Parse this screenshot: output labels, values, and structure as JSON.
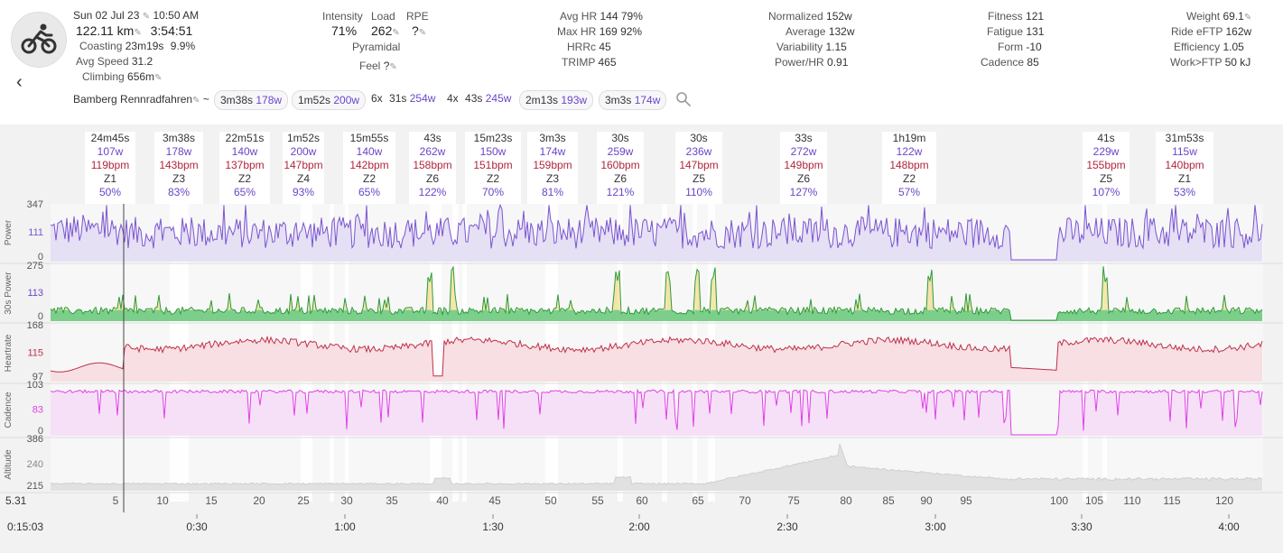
{
  "header": {
    "date": "Sun 02 Jul 23",
    "time": "10:50 AM",
    "distance": "122.11 km",
    "duration": "3:54:51",
    "coasting_label": "Coasting",
    "coasting_value": "23m19s",
    "coasting_pct": "9.9%",
    "avg_speed_label": "Avg Speed",
    "avg_speed_value": "31.2",
    "climbing_label": "Climbing",
    "climbing_value": "656m",
    "intensity_label": "Intensity",
    "intensity_value": "71%",
    "load_label": "Load",
    "load_value": "262",
    "rpe_label": "RPE",
    "rpe_value": "?",
    "pyramidal": "Pyramidal",
    "feel_label": "Feel",
    "feel_value": "?",
    "avg_hr_label": "Avg HR",
    "avg_hr_value": "144",
    "avg_hr_pct": "79%",
    "max_hr_label": "Max HR",
    "max_hr_value": "169",
    "max_hr_pct": "92%",
    "hrrc_label": "HRRc",
    "hrrc_value": "45",
    "trimp_label": "TRIMP",
    "trimp_value": "465",
    "normalized_label": "Normalized",
    "normalized_value": "152w",
    "average_label": "Average",
    "average_value": "132w",
    "variability_label": "Variability",
    "variability_value": "1.15",
    "powerhr_label": "Power/HR",
    "powerhr_value": "0.91",
    "fitness_label": "Fitness",
    "fitness_value": "121",
    "fatigue_label": "Fatigue",
    "fatigue_value": "131",
    "form_label": "Form",
    "form_value": "-10",
    "cadence_label": "Cadence",
    "cadence_value": "85",
    "weight_label": "Weight",
    "weight_value": "69.1",
    "eftp_label": "Ride eFTP",
    "eftp_value": "162w",
    "efficiency_label": "Efficiency",
    "efficiency_value": "1.05",
    "workftp_label": "Work>FTP",
    "workftp_value": "50 kJ",
    "activity_name": "Bamberg Rennradfahren",
    "tilde": "~"
  },
  "chips": [
    {
      "dur": "3m38s",
      "w": "178w"
    },
    {
      "dur": "1m52s",
      "w": "200w"
    },
    {
      "prefix": "6x",
      "dur": "31s",
      "w": "254w"
    },
    {
      "prefix": "4x",
      "dur": "43s",
      "w": "245w"
    },
    {
      "dur": "2m13s",
      "w": "193w"
    },
    {
      "dur": "3m3s",
      "w": "174w"
    }
  ],
  "intervals": [
    {
      "d": "24m45s",
      "p": "107w",
      "h": "119bpm",
      "z": "Z1",
      "pc": "50%"
    },
    {
      "d": "3m38s",
      "p": "178w",
      "h": "143bpm",
      "z": "Z3",
      "pc": "83%"
    },
    {
      "d": "22m51s",
      "p": "140w",
      "h": "137bpm",
      "z": "Z2",
      "pc": "65%"
    },
    {
      "d": "1m52s",
      "p": "200w",
      "h": "147bpm",
      "z": "Z4",
      "pc": "93%"
    },
    {
      "d": "15m55s",
      "p": "140w",
      "h": "142bpm",
      "z": "Z2",
      "pc": "65%"
    },
    {
      "d": "43s",
      "p": "262w",
      "h": "158bpm",
      "z": "Z6",
      "pc": "122%"
    },
    {
      "d": "15m23s",
      "p": "150w",
      "h": "151bpm",
      "z": "Z2",
      "pc": "70%"
    },
    {
      "d": "3m3s",
      "p": "174w",
      "h": "159bpm",
      "z": "Z3",
      "pc": "81%"
    },
    {
      "d": "30s",
      "p": "259w",
      "h": "160bpm",
      "z": "Z6",
      "pc": "121%"
    },
    {
      "d": "30s",
      "p": "236w",
      "h": "147bpm",
      "z": "Z5",
      "pc": "110%"
    },
    {
      "d": "33s",
      "p": "272w",
      "h": "149bpm",
      "z": "Z6",
      "pc": "127%"
    },
    {
      "d": "1h19m",
      "p": "122w",
      "h": "148bpm",
      "z": "Z2",
      "pc": "57%"
    },
    {
      "d": "41s",
      "p": "229w",
      "h": "155bpm",
      "z": "Z5",
      "pc": "107%"
    },
    {
      "d": "31m53s",
      "p": "115w",
      "h": "140bpm",
      "z": "Z1",
      "pc": "53%"
    }
  ],
  "panels": {
    "power": {
      "label": "Power",
      "ticks": [
        "347",
        "111",
        "0"
      ],
      "color": "#7b55d0"
    },
    "power30": {
      "label": "30s Power",
      "ticks": [
        "275",
        "113",
        "0"
      ],
      "color": "#6a45c8"
    },
    "hr": {
      "label": "Heartrate",
      "ticks": [
        "168",
        "115",
        "97"
      ],
      "color": "#c0304a"
    },
    "cad": {
      "label": "Cadence",
      "ticks": [
        "103",
        "83",
        "0"
      ],
      "color": "#e040e8"
    },
    "alt": {
      "label": "Altitude",
      "ticks": [
        "386",
        "240",
        "215"
      ],
      "color": "#888888"
    }
  },
  "km_axis": {
    "start": "5.31",
    "ticks": [
      "5",
      "10",
      "15",
      "20",
      "25",
      "30",
      "35",
      "40",
      "45",
      "50",
      "55",
      "60",
      "65",
      "70",
      "75",
      "80",
      "85",
      "90",
      "95",
      "100",
      "105",
      "110",
      "115",
      "120"
    ]
  },
  "time_axis": {
    "start": "0:15:03",
    "ticks": [
      "0:30",
      "1:00",
      "1:30",
      "2:00",
      "2:30",
      "3:00",
      "3:30",
      "4:00"
    ]
  },
  "colors": {
    "accent": "#6a45c8",
    "hr": "#b0273b",
    "bg": "#f2f2f2"
  }
}
